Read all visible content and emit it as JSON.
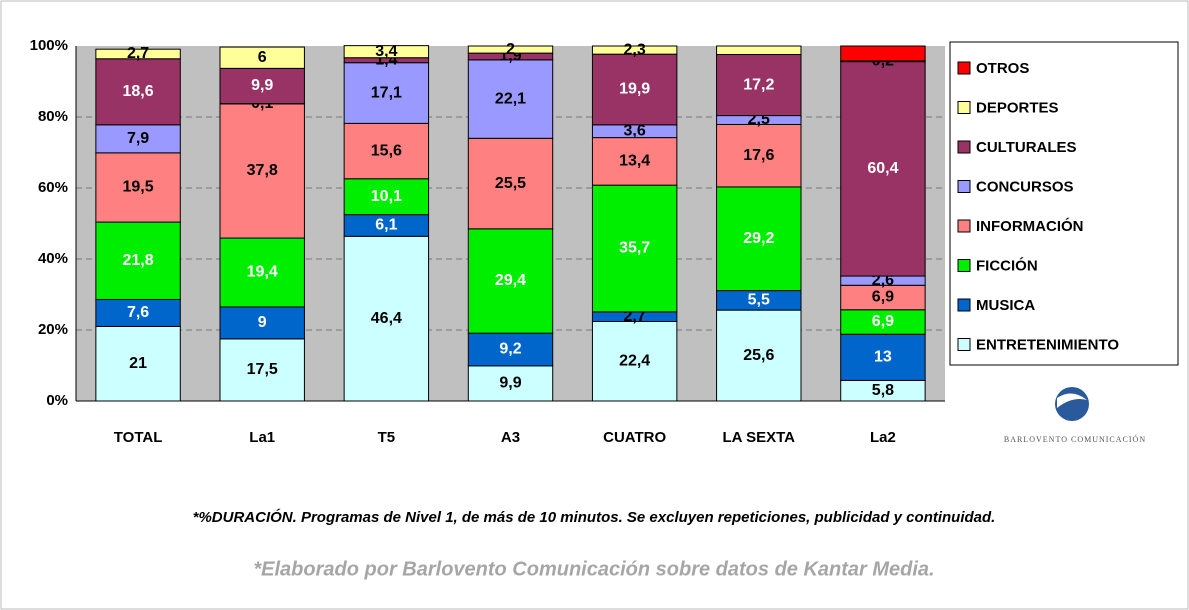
{
  "chart_data": {
    "type": "stacked_bar",
    "categories": [
      "TOTAL",
      "La1",
      "T5",
      "A3",
      "CUATRO",
      "LA SEXTA",
      "La2"
    ],
    "ylim": [
      0,
      100
    ],
    "yticks": [
      {
        "value": 0,
        "label": "0%"
      },
      {
        "value": 20,
        "label": "20%"
      },
      {
        "value": 40,
        "label": "40%"
      },
      {
        "value": 60,
        "label": "60%"
      },
      {
        "value": 80,
        "label": "80%"
      },
      {
        "value": 100,
        "label": "100%"
      }
    ],
    "grid": true,
    "legend": "right",
    "series": [
      {
        "name": "ENTRETENIMIENTO",
        "color": "#ccffff",
        "values": [
          21,
          17.5,
          46.4,
          9.9,
          22.4,
          25.6,
          5.8
        ],
        "value_labels": [
          "21",
          "17,5",
          "46,4",
          "9,9",
          "22,4",
          "25,6",
          "5,8"
        ]
      },
      {
        "name": "MUSICA",
        "color": "#0066cc",
        "values": [
          7.6,
          9,
          6.1,
          9.2,
          2.7,
          5.5,
          13
        ],
        "value_labels": [
          "7,6",
          "9",
          "6,1",
          "9,2",
          "2,7",
          "5,5",
          "13"
        ]
      },
      {
        "name": "FICCIÓN",
        "color": "#00ee00",
        "values": [
          21.8,
          19.4,
          10.1,
          29.4,
          35.7,
          29.2,
          6.9
        ],
        "value_labels": [
          "21,8",
          "19,4",
          "10,1",
          "29,4",
          "35,7",
          "29,2",
          "6,9"
        ]
      },
      {
        "name": "INFORMACIÓN",
        "color": "#ff8080",
        "values": [
          19.5,
          37.8,
          15.6,
          25.5,
          13.4,
          17.6,
          6.9
        ],
        "value_labels": [
          "19,5",
          "37,8",
          "15,6",
          "25,5",
          "13,4",
          "17,6",
          "6,9"
        ]
      },
      {
        "name": "CONCURSOS",
        "color": "#9999ff",
        "values": [
          7.9,
          0.1,
          17.1,
          22.1,
          3.6,
          2.5,
          2.6
        ],
        "value_labels": [
          "7,9",
          "0,1",
          "17,1",
          "22,1",
          "3,6",
          "2,5",
          "2,6"
        ]
      },
      {
        "name": "CULTURALES",
        "color": "#993366",
        "values": [
          18.6,
          9.9,
          1.4,
          1.9,
          19.9,
          17.2,
          60.4
        ],
        "value_labels": [
          "18,6",
          "9,9",
          "1,4",
          "1,9",
          "19,9",
          "17,2",
          "60,4"
        ]
      },
      {
        "name": "DEPORTES",
        "color": "#ffff99",
        "values": [
          2.7,
          6,
          3.4,
          2,
          2.3,
          2.4,
          0.2
        ],
        "value_labels": [
          "2,7",
          "6",
          "3,4",
          "2",
          "2,3",
          null,
          "0,2"
        ]
      },
      {
        "name": "OTROS",
        "color": "#ff0000",
        "values": [
          null,
          null,
          null,
          null,
          null,
          null,
          4.2
        ],
        "value_labels": [
          null,
          null,
          null,
          null,
          null,
          null,
          null
        ]
      }
    ]
  },
  "logo_text": "BARLOVENTO COMUNICACIÓN",
  "notes": [
    "*%DURACIÓN. Programas de Nivel 1, de más de 10 minutos. Se excluyen repeticiones, publicidad y continuidad.",
    "*Elaborado por Barlovento Comunicación sobre datos de Kantar Media."
  ]
}
